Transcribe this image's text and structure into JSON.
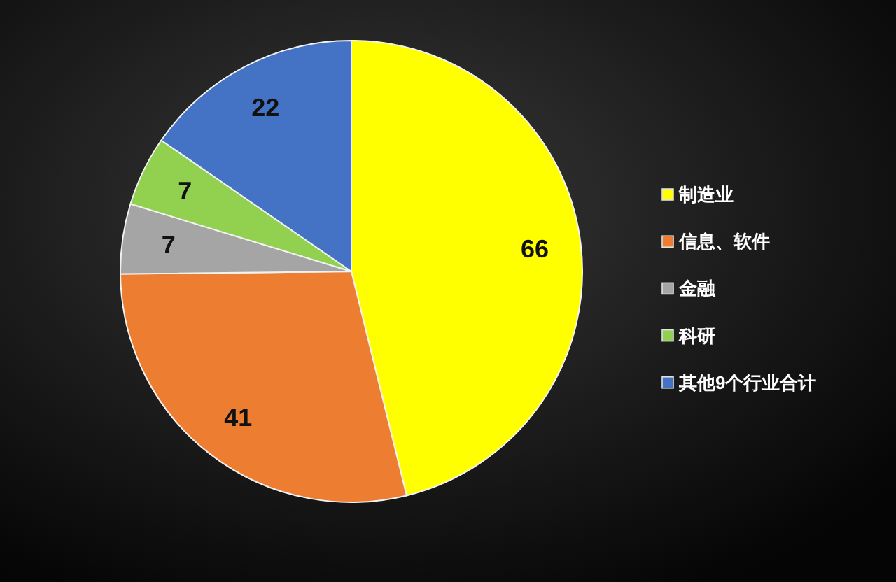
{
  "chart_data": {
    "type": "pie",
    "categories": [
      "制造业",
      "信息、软件",
      "金融",
      "科研",
      "其他9个行业合计"
    ],
    "values": [
      66,
      41,
      7,
      7,
      22
    ],
    "colors": [
      "#ffff00",
      "#ed7d31",
      "#a5a5a5",
      "#92d050",
      "#4472c4"
    ],
    "data_labels": true,
    "legend": "right"
  }
}
